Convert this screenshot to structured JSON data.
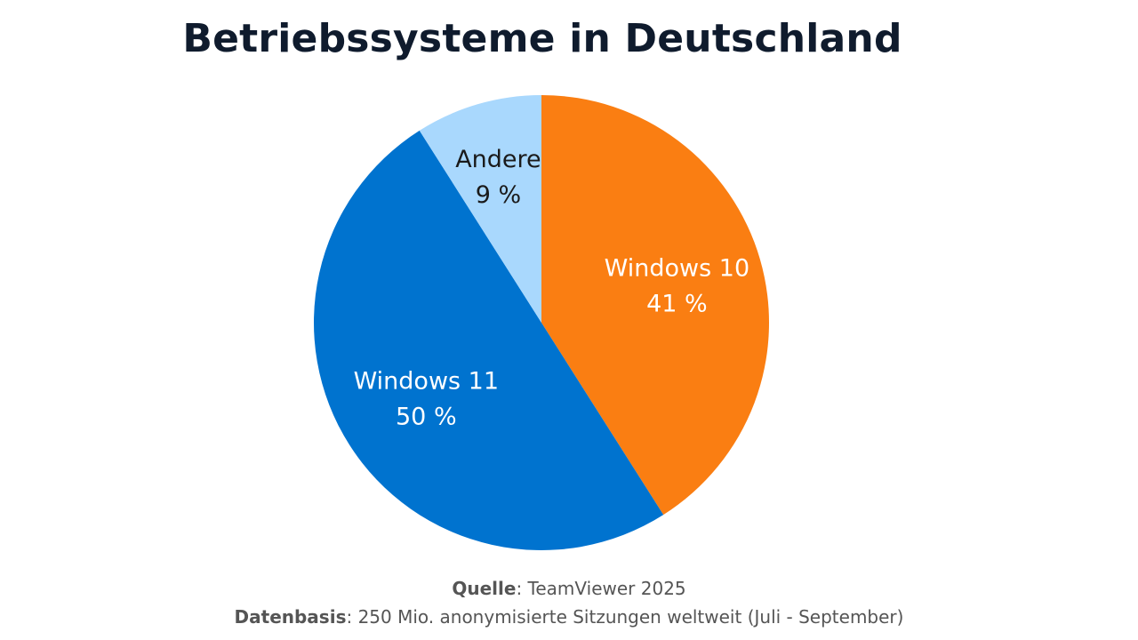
{
  "chart_data": {
    "type": "pie",
    "title": "Betriebssysteme in Deutschland",
    "slices": [
      {
        "label": "Windows 10",
        "value": 41,
        "value_label": "41 %",
        "color": "#fa7e12",
        "text_color": "#ffffff"
      },
      {
        "label": "Windows 11",
        "value": 50,
        "value_label": "50 %",
        "color": "#0073cf",
        "text_color": "#ffffff"
      },
      {
        "label": "Andere",
        "value": 9,
        "value_label": "9 %",
        "color": "#a9d8fd",
        "text_color": "#1a1a1a"
      }
    ],
    "start_angle": "12 o'clock, clockwise"
  },
  "footer": {
    "source_label": "Quelle",
    "source_value": ": TeamViewer 2025",
    "basis_label": "Datenbasis",
    "basis_value": ": 250 Mio. anonymisierte Sitzungen weltweit (Juli - September)"
  }
}
